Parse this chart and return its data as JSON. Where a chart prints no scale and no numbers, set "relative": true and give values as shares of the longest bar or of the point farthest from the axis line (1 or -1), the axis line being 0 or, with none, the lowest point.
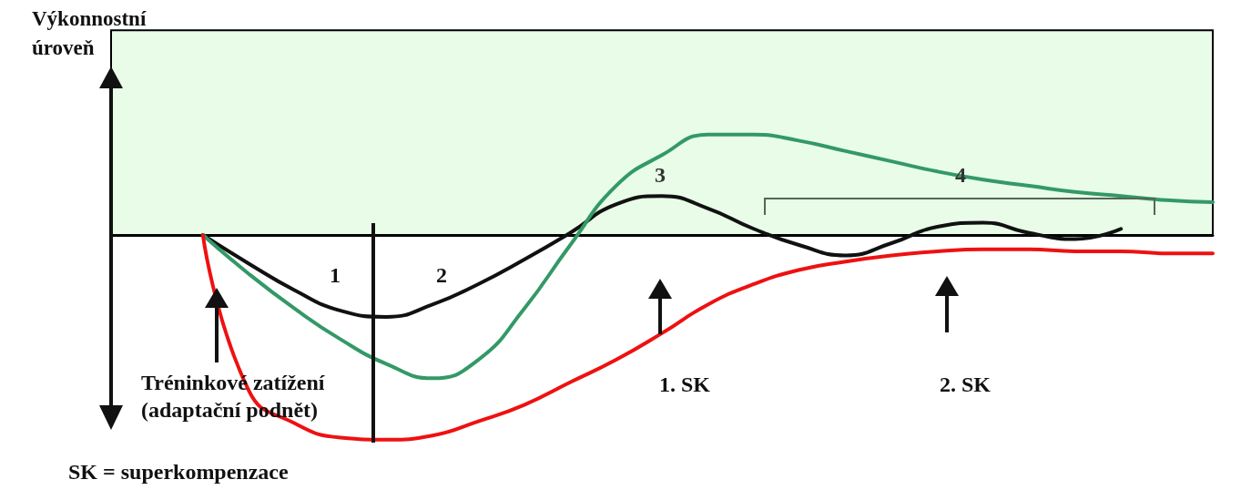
{
  "chart_data": {
    "type": "line",
    "relative": true,
    "ylabel": "Výkonnostní\núroveň",
    "categories": [
      null,
      null,
      null,
      null,
      null,
      null,
      null,
      null,
      null,
      null,
      null,
      null,
      null,
      null,
      null,
      null,
      null,
      null,
      null,
      null,
      null,
      null,
      null,
      null,
      null
    ],
    "series": [
      {
        "color": "#111111",
        "values": [
          null,
          null,
          0,
          -0.14,
          -0.27,
          -0.37,
          -0.4,
          -0.34,
          -0.24,
          -0.12,
          0.01,
          0.15,
          0.19,
          0.13,
          0.03,
          -0.05,
          -0.1,
          -0.04,
          0.04,
          0.06,
          0.01,
          -0.02,
          0.03,
          null,
          null
        ]
      },
      {
        "color": "#339966",
        "values": [
          null,
          null,
          0,
          -0.19,
          -0.36,
          -0.51,
          -0.63,
          -0.7,
          -0.61,
          -0.36,
          -0.05,
          0.24,
          0.39,
          0.49,
          0.49,
          0.46,
          0.41,
          0.36,
          0.31,
          0.27,
          0.24,
          0.21,
          0.19,
          0.17,
          0.16
        ]
      },
      {
        "color": "#ee1111",
        "values": [
          null,
          null,
          0,
          -0.76,
          -0.92,
          -0.99,
          -1,
          -0.98,
          -0.91,
          -0.83,
          -0.72,
          -0.61,
          -0.48,
          -0.34,
          -0.24,
          -0.17,
          -0.13,
          -0.1,
          -0.08,
          -0.07,
          -0.07,
          -0.08,
          -0.08,
          -0.09,
          -0.09
        ]
      }
    ],
    "bands": [
      {
        "axis": "y",
        "from": 0,
        "to": 1,
        "color": "#e8fce8"
      }
    ],
    "annotations": [
      "1",
      "2",
      "3",
      "4",
      "1. SK",
      "2. SK",
      "Tréninkové zatížení\n(adaptační podnět)",
      "SK = superkompenzace"
    ],
    "grid": false,
    "marker": "none",
    "line_style": "solid"
  }
}
